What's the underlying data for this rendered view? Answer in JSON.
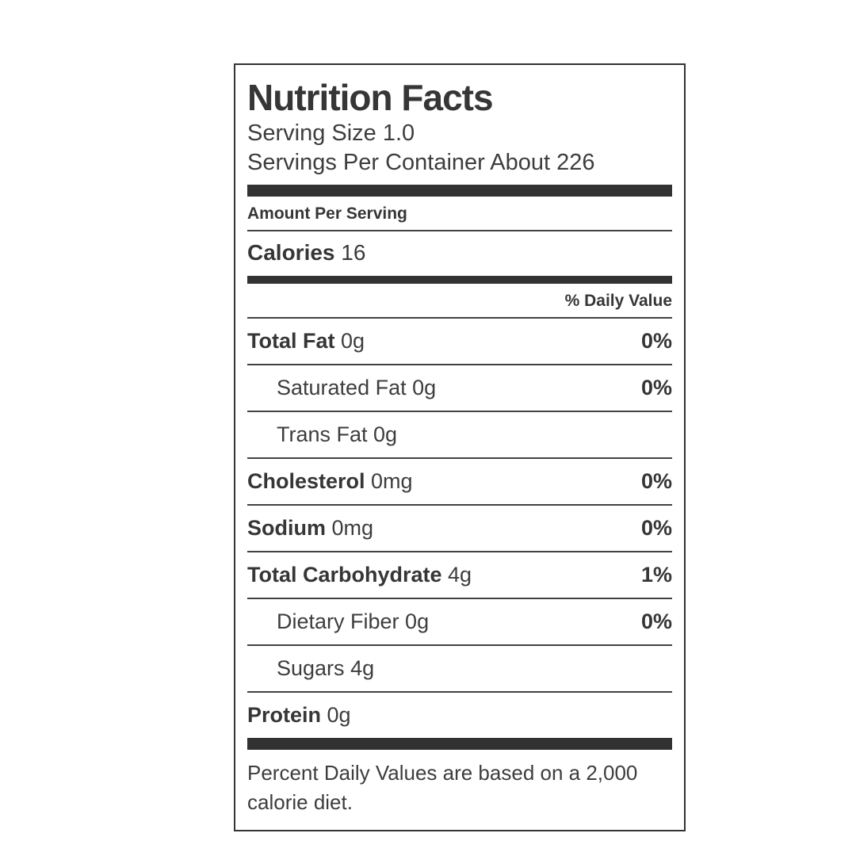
{
  "label": {
    "title": "Nutrition Facts",
    "serving_size": "Serving Size 1.0",
    "servings_per_container": "Servings Per Container About 226",
    "amount_per_serving": "Amount Per Serving",
    "calories_label": "Calories",
    "calories_value": "16",
    "daily_value_header": "% Daily Value",
    "nutrients": [
      {
        "name": "Total Fat",
        "amount": "0g",
        "daily_value": "0%",
        "bold": true,
        "indent": 0
      },
      {
        "name": "Saturated Fat",
        "amount": "0g",
        "daily_value": "0%",
        "bold": false,
        "indent": 1
      },
      {
        "name": "Trans Fat",
        "amount": "0g",
        "daily_value": "",
        "bold": false,
        "indent": 1
      },
      {
        "name": "Cholesterol",
        "amount": "0mg",
        "daily_value": "0%",
        "bold": true,
        "indent": 0
      },
      {
        "name": "Sodium",
        "amount": "0mg",
        "daily_value": "0%",
        "bold": true,
        "indent": 0
      },
      {
        "name": "Total Carbohydrate",
        "amount": "4g",
        "daily_value": "1%",
        "bold": true,
        "indent": 0
      },
      {
        "name": "Dietary Fiber",
        "amount": "0g",
        "daily_value": "0%",
        "bold": false,
        "indent": 1
      },
      {
        "name": "Sugars",
        "amount": "4g",
        "daily_value": "",
        "bold": false,
        "indent": 1
      },
      {
        "name": "Protein",
        "amount": "0g",
        "daily_value": "",
        "bold": true,
        "indent": 0
      }
    ],
    "footnote": "Percent Daily Values are based on a 2,000 calorie diet."
  },
  "colors": {
    "ink": "#3a3a3a",
    "bar": "#323232",
    "border": "#333333",
    "background": "#ffffff"
  }
}
